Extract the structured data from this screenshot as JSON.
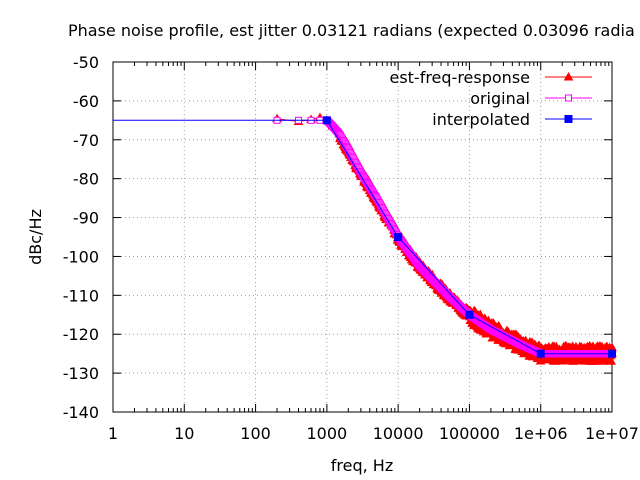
{
  "chart_data": {
    "type": "line",
    "title": "Phase noise profile, est jitter 0.03121 radians (expected 0.03096 radia",
    "xlabel": "freq, Hz",
    "ylabel": "dBc/Hz",
    "xscale": "log",
    "xlim": [
      1,
      10000000
    ],
    "ylim": [
      -140,
      -50
    ],
    "grid": true,
    "legend_position": "top-right",
    "xticks": [
      1,
      10,
      100,
      1000,
      10000,
      100000,
      1000000,
      10000000
    ],
    "xtick_labels": [
      "1",
      "10",
      "100",
      "1000",
      "10000",
      "100000",
      "1e+06",
      "1e+07"
    ],
    "yticks": [
      -50,
      -60,
      -70,
      -80,
      -90,
      -100,
      -110,
      -120,
      -130,
      -140
    ],
    "ytick_labels": [
      "-50",
      "-60",
      "-70",
      "-80",
      "-90",
      "-100",
      "-110",
      "-120",
      "-130",
      "-140"
    ],
    "series": [
      {
        "name": "est-freq-response",
        "color": "#ff0000",
        "marker": "filled-triangle",
        "noise_band_db": 2,
        "x": [
          200,
          400,
          600,
          800,
          1000,
          1200,
          1500,
          2000,
          3000,
          5000,
          10000,
          20000,
          50000,
          100000,
          200000,
          500000,
          1000000,
          2000000,
          5000000,
          10000000
        ],
        "y": [
          -64.6,
          -65.3,
          -64.8,
          -64.3,
          -65.0,
          -66.5,
          -68.5,
          -72.5,
          -78.5,
          -85.0,
          -95.0,
          -102.5,
          -110.0,
          -115.0,
          -118.8,
          -122.5,
          -125.0,
          -125.0,
          -125.0,
          -125.0
        ]
      },
      {
        "name": "original",
        "color": "#ff00ff",
        "marker": "open-square",
        "x": [
          200,
          400,
          600,
          800,
          1000,
          1200,
          1500,
          2000,
          3000,
          5000,
          10000,
          20000,
          50000,
          100000,
          200000,
          500000,
          1000000,
          2000000,
          5000000,
          10000000
        ],
        "y": [
          -65,
          -65,
          -65,
          -65,
          -65,
          -66.5,
          -68.5,
          -72.5,
          -78.5,
          -85,
          -95,
          -102.5,
          -110,
          -115,
          -118.8,
          -122.5,
          -125,
          -125,
          -125,
          -125
        ]
      },
      {
        "name": "interpolated",
        "color": "#0000ff",
        "marker": "filled-square",
        "x": [
          1,
          10,
          100,
          1000,
          10000,
          100000,
          1000000,
          10000000
        ],
        "y": [
          -65,
          -65,
          -65,
          -65,
          -95,
          -115,
          -125,
          -125
        ],
        "marker_x": [
          1000,
          10000,
          100000,
          1000000,
          10000000
        ]
      }
    ]
  }
}
